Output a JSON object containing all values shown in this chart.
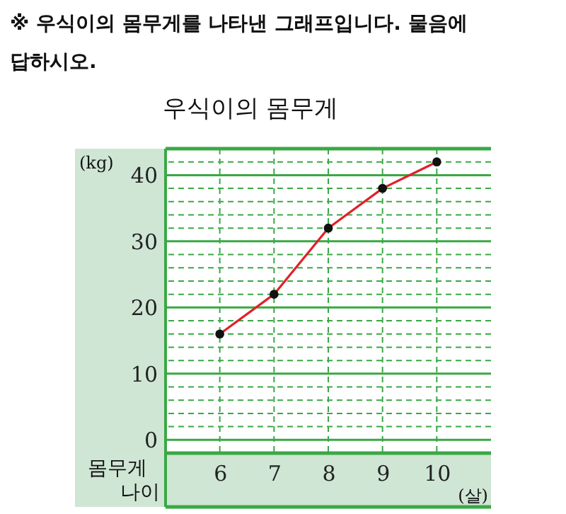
{
  "chart_data": {
    "type": "line",
    "title": "우식이의 몸무게",
    "subtitle": "※ 우식이의 몸무게를 나타낸 그래프입니다. 물음에 답하시오.",
    "xlabel": "(살)",
    "ylabel": "(kg)",
    "annotations": [
      "몸무게",
      "나이"
    ],
    "x": [
      6,
      7,
      8,
      9,
      10
    ],
    "series": [
      {
        "color": "#e0202a",
        "values": [
          16,
          22,
          32,
          38,
          42
        ]
      }
    ],
    "xlim": [
      5,
      11
    ],
    "xticks": [
      6,
      7,
      8,
      9,
      10
    ],
    "ylim": [
      -2,
      44
    ],
    "yticks": [
      0,
      {
        "value": 2,
        "label": null
      },
      {
        "value": 4,
        "label": null
      },
      {
        "value": 6,
        "label": null
      },
      {
        "value": 8,
        "label": null
      },
      10,
      {
        "value": 12,
        "label": null
      },
      {
        "value": 14,
        "label": null
      },
      {
        "value": 16,
        "label": null
      },
      {
        "value": 18,
        "label": null
      },
      20,
      {
        "value": 22,
        "label": null
      },
      {
        "value": 24,
        "label": null
      },
      {
        "value": 26,
        "label": null
      },
      {
        "value": 28,
        "label": null
      },
      30,
      {
        "value": 32,
        "label": null
      },
      {
        "value": 34,
        "label": null
      },
      {
        "value": 36,
        "label": null
      },
      {
        "value": 38,
        "label": null
      },
      40,
      {
        "value": 42,
        "label": null
      }
    ],
    "grid": true,
    "marker": "circle",
    "line_style": "solid"
  }
}
